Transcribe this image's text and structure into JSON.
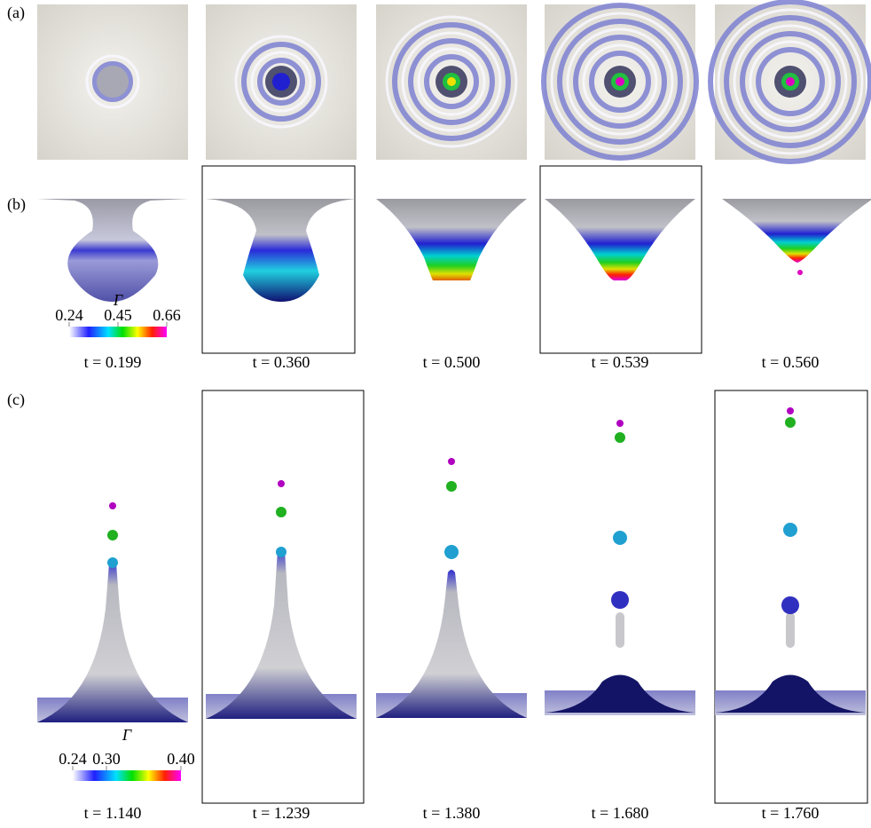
{
  "panel_labels": [
    "(a)",
    "(b)",
    "(c)"
  ],
  "row_b": {
    "colorbar": {
      "symbol": "Γ",
      "ticks": [
        "0.24",
        "0.45",
        "0.66"
      ]
    },
    "captions": [
      "t = 0.199",
      "t = 0.360",
      "t = 0.500",
      "t = 0.539",
      "t = 0.560"
    ]
  },
  "row_c": {
    "colorbar": {
      "symbol": "Γ",
      "ticks": [
        "0.24",
        "0.30",
        "0.40"
      ]
    },
    "captions": [
      "t = 1.140",
      "t = 1.239",
      "t = 1.380",
      "t = 1.680",
      "t = 1.760"
    ]
  }
}
